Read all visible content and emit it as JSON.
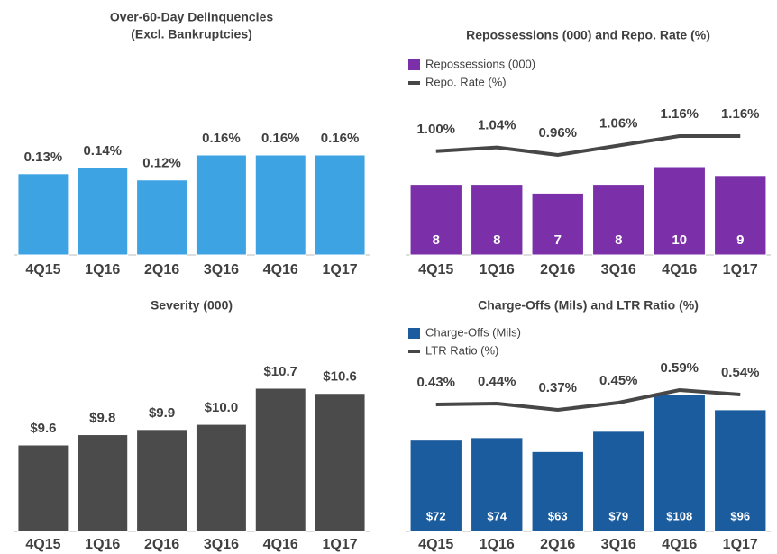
{
  "chart_data": [
    {
      "type": "bar",
      "title": "Over-60-Day Delinquencies",
      "subtitle": "(Excl. Bankruptcies)",
      "categories": [
        "4Q15",
        "1Q16",
        "2Q16",
        "3Q16",
        "4Q16",
        "1Q17"
      ],
      "values": [
        0.13,
        0.14,
        0.12,
        0.16,
        0.16,
        0.16
      ],
      "value_labels": [
        "0.13%",
        "0.14%",
        "0.12%",
        "0.16%",
        "0.16%",
        "0.16%"
      ],
      "color": "#3ea3e3",
      "zero_based": true
    },
    {
      "type": "combo",
      "title": "Repossessions (000) and Repo. Rate (%)",
      "categories": [
        "4Q15",
        "1Q16",
        "2Q16",
        "3Q16",
        "4Q16",
        "1Q17"
      ],
      "series": [
        {
          "name": "Repossessions (000)",
          "type": "bar",
          "color": "#7b2fa8",
          "values": [
            8,
            8,
            7,
            8,
            10,
            9
          ],
          "value_labels": [
            "8",
            "8",
            "7",
            "8",
            "10",
            "9"
          ]
        },
        {
          "name": "Repo. Rate (%)",
          "type": "line",
          "color": "#474747",
          "values": [
            1.0,
            1.04,
            0.96,
            1.06,
            1.16,
            1.16
          ],
          "value_labels": [
            "1.00%",
            "1.04%",
            "0.96%",
            "1.06%",
            "1.16%",
            "1.16%"
          ]
        }
      ]
    },
    {
      "type": "bar",
      "title": "Severity (000)",
      "categories": [
        "4Q15",
        "1Q16",
        "2Q16",
        "3Q16",
        "4Q16",
        "1Q17"
      ],
      "values": [
        9.6,
        9.8,
        9.9,
        10.0,
        10.7,
        10.6
      ],
      "value_labels": [
        "$9.6",
        "$9.8",
        "$9.9",
        "$10.0",
        "$10.7",
        "$10.6"
      ],
      "color": "#4b4b4b",
      "zero_based": false
    },
    {
      "type": "combo",
      "title": "Charge-Offs (Mils) and LTR Ratio (%)",
      "categories": [
        "4Q15",
        "1Q16",
        "2Q16",
        "3Q16",
        "4Q16",
        "1Q17"
      ],
      "series": [
        {
          "name": "Charge-Offs (Mils)",
          "type": "bar",
          "color": "#1b5c9e",
          "values": [
            72,
            74,
            63,
            79,
            108,
            96
          ],
          "value_labels": [
            "$72",
            "$74",
            "$63",
            "$79",
            "$108",
            "$96"
          ]
        },
        {
          "name": "LTR Ratio (%)",
          "type": "line",
          "color": "#474747",
          "values": [
            0.43,
            0.44,
            0.37,
            0.45,
            0.59,
            0.54
          ],
          "value_labels": [
            "0.43%",
            "0.44%",
            "0.37%",
            "0.45%",
            "0.59%",
            "0.54%"
          ]
        }
      ]
    }
  ]
}
